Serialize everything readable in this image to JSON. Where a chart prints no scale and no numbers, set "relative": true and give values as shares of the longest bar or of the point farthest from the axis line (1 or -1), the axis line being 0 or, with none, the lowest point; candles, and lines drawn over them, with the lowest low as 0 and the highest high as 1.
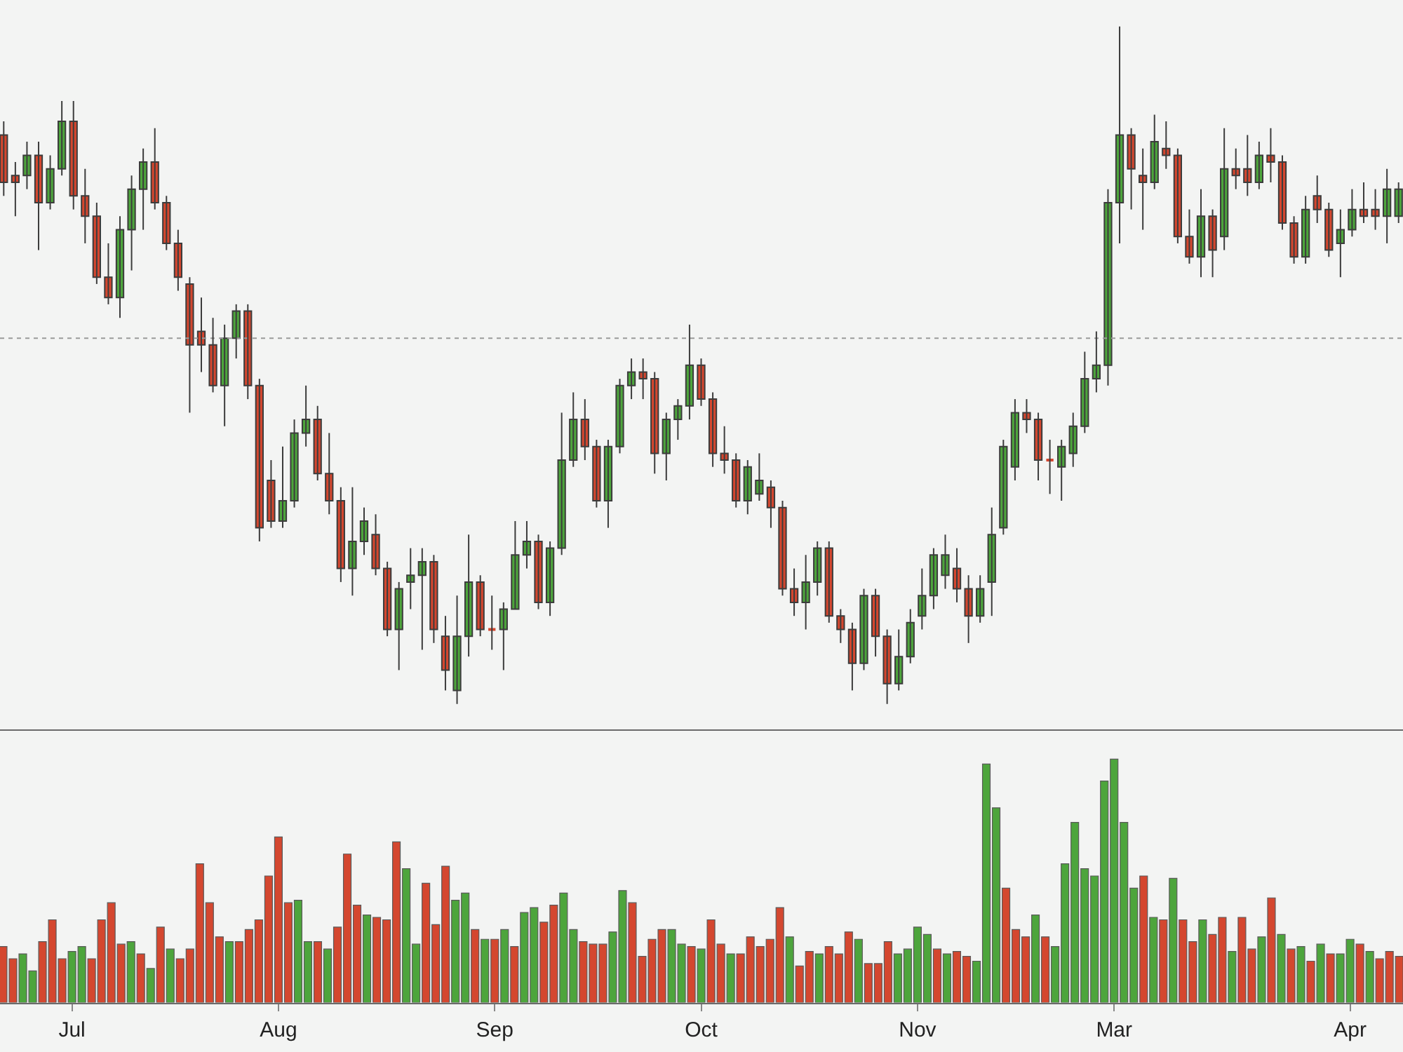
{
  "chart_data": [
    {
      "type": "candlestick",
      "relative": true,
      "categories": [
        null,
        null,
        null,
        null,
        null,
        null,
        null,
        null,
        null,
        null,
        null,
        null,
        null,
        null,
        null,
        null,
        null,
        null,
        null,
        null,
        null,
        null,
        null,
        null,
        null,
        null,
        null,
        null,
        null,
        null,
        null,
        null,
        null,
        null,
        null,
        null,
        null,
        null,
        null,
        null,
        null,
        null,
        null,
        null,
        null,
        null,
        null,
        null,
        null,
        null,
        null,
        null,
        null,
        null,
        null,
        null,
        null,
        null,
        null,
        null,
        null,
        null,
        null,
        null,
        null,
        null,
        null,
        null,
        null,
        null,
        null,
        null,
        null,
        null,
        null,
        null,
        null,
        null,
        null,
        null,
        null,
        null,
        null,
        null,
        null,
        null,
        null,
        null,
        null,
        null,
        null,
        null,
        null,
        null,
        null,
        null,
        null,
        null,
        null,
        null,
        null,
        null,
        null,
        null,
        null,
        null,
        null,
        null,
        null,
        null,
        null,
        null,
        null,
        null,
        null,
        null,
        null,
        null,
        null,
        null,
        null
      ],
      "ohlc": [
        [
          0.84,
          0.86,
          0.75,
          0.77
        ],
        [
          0.78,
          0.8,
          0.72,
          0.77
        ],
        [
          0.78,
          0.83,
          0.76,
          0.81
        ],
        [
          0.81,
          0.83,
          0.67,
          0.74
        ],
        [
          0.74,
          0.81,
          0.73,
          0.79
        ],
        [
          0.79,
          0.89,
          0.78,
          0.86
        ],
        [
          0.86,
          0.89,
          0.73,
          0.75
        ],
        [
          0.75,
          0.79,
          0.68,
          0.72
        ],
        [
          0.72,
          0.74,
          0.62,
          0.63
        ],
        [
          0.63,
          0.68,
          0.59,
          0.6
        ],
        [
          0.6,
          0.72,
          0.57,
          0.7
        ],
        [
          0.7,
          0.78,
          0.64,
          0.76
        ],
        [
          0.76,
          0.82,
          0.7,
          0.8
        ],
        [
          0.8,
          0.85,
          0.73,
          0.74
        ],
        [
          0.74,
          0.75,
          0.67,
          0.68
        ],
        [
          0.68,
          0.7,
          0.61,
          0.63
        ],
        [
          0.62,
          0.63,
          0.43,
          0.53
        ],
        [
          0.55,
          0.6,
          0.49,
          0.53
        ],
        [
          0.53,
          0.57,
          0.46,
          0.47
        ],
        [
          0.47,
          0.56,
          0.41,
          0.54
        ],
        [
          0.54,
          0.59,
          0.51,
          0.58
        ],
        [
          0.58,
          0.59,
          0.45,
          0.47
        ],
        [
          0.47,
          0.48,
          0.24,
          0.26
        ],
        [
          0.33,
          0.36,
          0.26,
          0.27
        ],
        [
          0.27,
          0.38,
          0.26,
          0.3
        ],
        [
          0.3,
          0.42,
          0.29,
          0.4
        ],
        [
          0.4,
          0.47,
          0.38,
          0.42
        ],
        [
          0.42,
          0.44,
          0.33,
          0.34
        ],
        [
          0.34,
          0.4,
          0.28,
          0.3
        ],
        [
          0.3,
          0.32,
          0.18,
          0.2
        ],
        [
          0.2,
          0.32,
          0.16,
          0.24
        ],
        [
          0.24,
          0.29,
          0.22,
          0.27
        ],
        [
          0.25,
          0.28,
          0.19,
          0.2
        ],
        [
          0.2,
          0.21,
          0.1,
          0.11
        ],
        [
          0.11,
          0.18,
          0.05,
          0.17
        ],
        [
          0.18,
          0.23,
          0.14,
          0.19
        ],
        [
          0.19,
          0.23,
          0.08,
          0.21
        ],
        [
          0.21,
          0.22,
          0.09,
          0.11
        ],
        [
          0.1,
          0.13,
          0.02,
          0.05
        ],
        [
          0.02,
          0.16,
          0,
          0.1
        ],
        [
          0.1,
          0.25,
          0.07,
          0.18
        ],
        [
          0.18,
          0.19,
          0.1,
          0.11
        ],
        [
          0.11,
          0.16,
          0.08,
          0.11
        ],
        [
          0.11,
          0.15,
          0.05,
          0.14
        ],
        [
          0.14,
          0.27,
          0.14,
          0.22
        ],
        [
          0.22,
          0.27,
          0.2,
          0.24
        ],
        [
          0.24,
          0.25,
          0.14,
          0.15
        ],
        [
          0.15,
          0.24,
          0.13,
          0.23
        ],
        [
          0.23,
          0.43,
          0.22,
          0.36
        ],
        [
          0.36,
          0.46,
          0.35,
          0.42
        ],
        [
          0.42,
          0.45,
          0.36,
          0.38
        ],
        [
          0.38,
          0.39,
          0.29,
          0.3
        ],
        [
          0.3,
          0.39,
          0.26,
          0.38
        ],
        [
          0.38,
          0.48,
          0.37,
          0.47
        ],
        [
          0.47,
          0.51,
          0.45,
          0.49
        ],
        [
          0.49,
          0.51,
          0.45,
          0.48
        ],
        [
          0.48,
          0.49,
          0.34,
          0.37
        ],
        [
          0.37,
          0.43,
          0.33,
          0.42
        ],
        [
          0.42,
          0.45,
          0.39,
          0.44
        ],
        [
          0.44,
          0.56,
          0.42,
          0.5
        ],
        [
          0.5,
          0.51,
          0.44,
          0.45
        ],
        [
          0.45,
          0.46,
          0.35,
          0.37
        ],
        [
          0.37,
          0.41,
          0.34,
          0.36
        ],
        [
          0.36,
          0.37,
          0.29,
          0.3
        ],
        [
          0.3,
          0.36,
          0.28,
          0.35
        ],
        [
          0.31,
          0.37,
          0.3,
          0.33
        ],
        [
          0.32,
          0.33,
          0.26,
          0.29
        ],
        [
          0.29,
          0.3,
          0.16,
          0.17
        ],
        [
          0.17,
          0.2,
          0.13,
          0.15
        ],
        [
          0.15,
          0.22,
          0.11,
          0.18
        ],
        [
          0.18,
          0.24,
          0.16,
          0.23
        ],
        [
          0.23,
          0.24,
          0.12,
          0.13
        ],
        [
          0.13,
          0.14,
          0.09,
          0.11
        ],
        [
          0.11,
          0.12,
          0.02,
          0.06
        ],
        [
          0.06,
          0.17,
          0.05,
          0.16
        ],
        [
          0.16,
          0.17,
          0.07,
          0.1
        ],
        [
          0.1,
          0.11,
          0,
          0.03
        ],
        [
          0.03,
          0.11,
          0.02,
          0.07
        ],
        [
          0.07,
          0.14,
          0.06,
          0.12
        ],
        [
          0.13,
          0.2,
          0.11,
          0.16
        ],
        [
          0.16,
          0.23,
          0.14,
          0.22
        ],
        [
          0.19,
          0.25,
          0.17,
          0.22
        ],
        [
          0.2,
          0.23,
          0.15,
          0.17
        ],
        [
          0.17,
          0.19,
          0.09,
          0.13
        ],
        [
          0.13,
          0.19,
          0.12,
          0.17
        ],
        [
          0.18,
          0.29,
          0.13,
          0.25
        ],
        [
          0.26,
          0.39,
          0.25,
          0.38
        ],
        [
          0.35,
          0.45,
          0.33,
          0.43
        ],
        [
          0.43,
          0.45,
          0.4,
          0.42
        ],
        [
          0.42,
          0.43,
          0.33,
          0.36
        ],
        [
          0.36,
          0.39,
          0.31,
          0.36
        ],
        [
          0.35,
          0.39,
          0.3,
          0.38
        ],
        [
          0.37,
          0.43,
          0.35,
          0.41
        ],
        [
          0.41,
          0.52,
          0.4,
          0.48
        ],
        [
          0.48,
          0.55,
          0.46,
          0.5
        ],
        [
          0.5,
          0.76,
          0.47,
          0.74
        ],
        [
          0.74,
          1,
          0.68,
          0.84
        ],
        [
          0.84,
          0.85,
          0.73,
          0.79
        ],
        [
          0.78,
          0.82,
          0.7,
          0.77
        ],
        [
          0.77,
          0.87,
          0.76,
          0.83
        ],
        [
          0.82,
          0.86,
          0.79,
          0.81
        ],
        [
          0.81,
          0.82,
          0.68,
          0.69
        ],
        [
          0.69,
          0.73,
          0.65,
          0.66
        ],
        [
          0.66,
          0.76,
          0.63,
          0.72
        ],
        [
          0.72,
          0.73,
          0.63,
          0.67
        ],
        [
          0.69,
          0.85,
          0.67,
          0.79
        ],
        [
          0.79,
          0.82,
          0.76,
          0.78
        ],
        [
          0.79,
          0.84,
          0.75,
          0.77
        ],
        [
          0.77,
          0.83,
          0.76,
          0.81
        ],
        [
          0.81,
          0.85,
          0.77,
          0.8
        ],
        [
          0.8,
          0.81,
          0.7,
          0.71
        ],
        [
          0.71,
          0.72,
          0.65,
          0.66
        ],
        [
          0.66,
          0.75,
          0.65,
          0.73
        ],
        [
          0.75,
          0.78,
          0.71,
          0.73
        ],
        [
          0.73,
          0.74,
          0.66,
          0.67
        ],
        [
          0.68,
          0.73,
          0.63,
          0.7
        ],
        [
          0.7,
          0.76,
          0.69,
          0.73
        ],
        [
          0.73,
          0.77,
          0.71,
          0.72
        ],
        [
          0.73,
          0.76,
          0.7,
          0.72
        ],
        [
          0.72,
          0.79,
          0.68,
          0.76
        ],
        [
          0.72,
          0.77,
          0.71,
          0.76
        ]
      ],
      "colors": [
        "#d4472f",
        "#d4472f",
        "#4da53c",
        "#d4472f",
        "#4da53c",
        "#4da53c",
        "#d4472f",
        "#d4472f",
        "#d4472f",
        "#d4472f",
        "#4da53c",
        "#4da53c",
        "#4da53c",
        "#d4472f",
        "#d4472f",
        "#d4472f",
        "#d4472f",
        "#d4472f",
        "#d4472f",
        "#4da53c",
        "#4da53c",
        "#d4472f",
        "#d4472f",
        "#d4472f",
        "#4da53c",
        "#4da53c",
        "#4da53c",
        "#d4472f",
        "#d4472f",
        "#d4472f",
        "#4da53c",
        "#4da53c",
        "#d4472f",
        "#d4472f",
        "#4da53c",
        "#4da53c",
        "#4da53c",
        "#d4472f",
        "#d4472f",
        "#4da53c",
        "#4da53c",
        "#d4472f",
        "#d4472f",
        "#4da53c",
        "#4da53c",
        "#4da53c",
        "#d4472f",
        "#4da53c",
        "#4da53c",
        "#4da53c",
        "#d4472f",
        "#d4472f",
        "#4da53c",
        "#4da53c",
        "#4da53c",
        "#d4472f",
        "#d4472f",
        "#4da53c",
        "#4da53c",
        "#4da53c",
        "#d4472f",
        "#d4472f",
        "#d4472f",
        "#d4472f",
        "#4da53c",
        "#4da53c",
        "#d4472f",
        "#d4472f",
        "#d4472f",
        "#4da53c",
        "#4da53c",
        "#d4472f",
        "#d4472f",
        "#d4472f",
        "#4da53c",
        "#d4472f",
        "#d4472f",
        "#4da53c",
        "#4da53c",
        "#4da53c",
        "#4da53c",
        "#4da53c",
        "#d4472f",
        "#d4472f",
        "#4da53c",
        "#4da53c",
        "#4da53c",
        "#4da53c",
        "#d4472f",
        "#d4472f",
        "#d4472f",
        "#4da53c",
        "#4da53c",
        "#4da53c",
        "#4da53c",
        "#4da53c",
        "#4da53c",
        "#d4472f",
        "#d4472f",
        "#4da53c",
        "#d4472f",
        "#d4472f",
        "#d4472f",
        "#4da53c",
        "#d4472f",
        "#4da53c",
        "#d4472f",
        "#d4472f",
        "#4da53c",
        "#d4472f",
        "#d4472f",
        "#d4472f",
        "#4da53c",
        "#d4472f",
        "#d4472f",
        "#4da53c",
        "#4da53c",
        "#d4472f",
        "#d4472f",
        "#4da53c",
        "#4da53c"
      ],
      "ref_lines": [
        {
          "axis": "y",
          "value": 0.54,
          "color": "#9a9a9a",
          "line_style": "dotted"
        }
      ]
    },
    {
      "type": "bar",
      "relative": true,
      "categories": [
        null,
        null,
        null,
        null,
        null,
        null,
        null,
        "Jul",
        null,
        null,
        null,
        null,
        null,
        null,
        null,
        null,
        null,
        null,
        null,
        null,
        null,
        null,
        null,
        null,
        null,
        null,
        null,
        null,
        "Aug",
        null,
        null,
        null,
        null,
        null,
        null,
        null,
        null,
        null,
        null,
        null,
        null,
        null,
        null,
        null,
        null,
        null,
        null,
        null,
        null,
        null,
        "Sep",
        null,
        null,
        null,
        null,
        null,
        null,
        null,
        null,
        null,
        null,
        null,
        null,
        null,
        null,
        null,
        null,
        null,
        null,
        null,
        null,
        "Oct",
        null,
        null,
        null,
        null,
        null,
        null,
        null,
        null,
        null,
        null,
        null,
        null,
        null,
        null,
        null,
        null,
        null,
        null,
        null,
        null,
        null,
        "Nov",
        null,
        null,
        null,
        null,
        null,
        null,
        null,
        null,
        null,
        null,
        null,
        null,
        null,
        null,
        null,
        null,
        null,
        null,
        null,
        "Mar",
        null,
        null,
        null,
        null,
        null,
        null,
        null,
        null,
        null,
        null,
        null,
        null,
        null,
        null,
        null,
        null,
        null,
        null,
        null,
        null,
        null,
        null,
        null,
        "Apr",
        null,
        null,
        null,
        null,
        null
      ],
      "values": [
        0.23,
        0.18,
        0.2,
        0.13,
        0.25,
        0.34,
        0.18,
        0.21,
        0.23,
        0.18,
        0.34,
        0.41,
        0.24,
        0.25,
        0.2,
        0.14,
        0.31,
        0.22,
        0.18,
        0.22,
        0.57,
        0.41,
        0.27,
        0.25,
        0.25,
        0.3,
        0.34,
        0.52,
        0.68,
        0.41,
        0.42,
        0.25,
        0.25,
        0.22,
        0.31,
        0.61,
        0.4,
        0.36,
        0.35,
        0.34,
        0.66,
        0.55,
        0.24,
        0.49,
        0.32,
        0.56,
        0.42,
        0.45,
        0.3,
        0.26,
        0.26,
        0.3,
        0.23,
        0.37,
        0.39,
        0.33,
        0.4,
        0.45,
        0.3,
        0.25,
        0.24,
        0.24,
        0.29,
        0.46,
        0.41,
        0.19,
        0.26,
        0.3,
        0.3,
        0.24,
        0.23,
        0.22,
        0.34,
        0.24,
        0.2,
        0.2,
        0.27,
        0.23,
        0.26,
        0.39,
        0.27,
        0.15,
        0.21,
        0.2,
        0.23,
        0.2,
        0.29,
        0.26,
        0.16,
        0.16,
        0.25,
        0.2,
        0.22,
        0.31,
        0.28,
        0.22,
        0.2,
        0.21,
        0.19,
        0.17,
        0.98,
        0.8,
        0.47,
        0.3,
        0.27,
        0.36,
        0.27,
        0.23,
        0.57,
        0.74,
        0.55,
        0.52,
        0.91,
        1,
        0.74,
        0.47,
        0.52,
        0.35,
        0.34,
        0.51,
        0.34,
        0.25,
        0.34,
        0.28,
        0.35,
        0.21,
        0.35,
        0.22,
        0.27,
        0.43,
        0.28,
        0.22,
        0.23,
        0.17,
        0.24,
        0.2,
        0.2,
        0.26,
        0.24,
        0.21,
        0.18,
        0.21,
        0.19
      ],
      "colors": [
        "#d4472f",
        "#d4472f",
        "#4da53c",
        "#4da53c",
        "#d4472f",
        "#d4472f",
        "#d4472f",
        "#4da53c",
        "#4da53c",
        "#d4472f",
        "#d4472f",
        "#d4472f",
        "#d4472f",
        "#4da53c",
        "#d4472f",
        "#4da53c",
        "#d4472f",
        "#4da53c",
        "#d4472f",
        "#d4472f",
        "#d4472f",
        "#d4472f",
        "#d4472f",
        "#4da53c",
        "#d4472f",
        "#d4472f",
        "#d4472f",
        "#d4472f",
        "#d4472f",
        "#d4472f",
        "#4da53c",
        "#4da53c",
        "#d4472f",
        "#4da53c",
        "#d4472f",
        "#d4472f",
        "#d4472f",
        "#4da53c",
        "#d4472f",
        "#d4472f",
        "#d4472f",
        "#4da53c",
        "#4da53c",
        "#d4472f",
        "#d4472f",
        "#d4472f",
        "#4da53c",
        "#4da53c",
        "#d4472f",
        "#4da53c",
        "#d4472f",
        "#4da53c",
        "#d4472f",
        "#4da53c",
        "#4da53c",
        "#d4472f",
        "#d4472f",
        "#4da53c",
        "#4da53c",
        "#d4472f",
        "#d4472f",
        "#d4472f",
        "#4da53c",
        "#4da53c",
        "#d4472f",
        "#d4472f",
        "#d4472f",
        "#d4472f",
        "#4da53c",
        "#4da53c",
        "#d4472f",
        "#4da53c",
        "#d4472f",
        "#d4472f",
        "#4da53c",
        "#d4472f",
        "#d4472f",
        "#d4472f",
        "#d4472f",
        "#d4472f",
        "#4da53c",
        "#d4472f",
        "#d4472f",
        "#4da53c",
        "#d4472f",
        "#d4472f",
        "#d4472f",
        "#4da53c",
        "#d4472f",
        "#d4472f",
        "#d4472f",
        "#4da53c",
        "#4da53c",
        "#4da53c",
        "#4da53c",
        "#d4472f",
        "#4da53c",
        "#d4472f",
        "#d4472f",
        "#4da53c",
        "#4da53c",
        "#4da53c",
        "#d4472f",
        "#d4472f",
        "#d4472f",
        "#4da53c",
        "#d4472f",
        "#4da53c",
        "#4da53c",
        "#4da53c",
        "#4da53c",
        "#4da53c",
        "#4da53c",
        "#4da53c",
        "#4da53c",
        "#4da53c",
        "#d4472f",
        "#4da53c",
        "#d4472f",
        "#4da53c",
        "#d4472f",
        "#d4472f",
        "#4da53c",
        "#d4472f",
        "#d4472f",
        "#4da53c",
        "#d4472f",
        "#d4472f",
        "#4da53c",
        "#d4472f",
        "#4da53c",
        "#d4472f",
        "#4da53c",
        "#d4472f",
        "#4da53c",
        "#d4472f",
        "#4da53c",
        "#4da53c",
        "#d4472f",
        "#4da53c",
        "#d4472f",
        "#d4472f",
        "#d4472f"
      ]
    }
  ]
}
